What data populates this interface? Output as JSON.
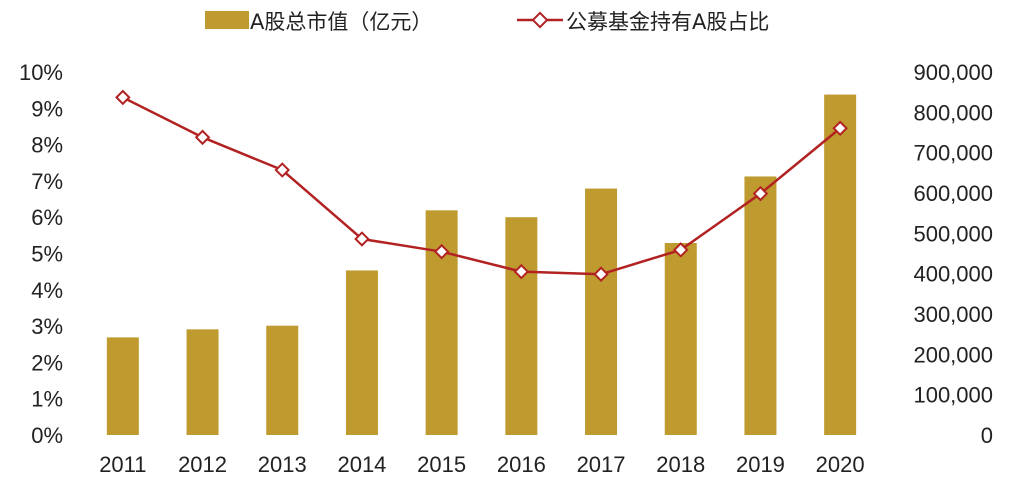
{
  "chart_data": {
    "type": "bar+line",
    "title": "",
    "categories": [
      "2011",
      "2012",
      "2013",
      "2014",
      "2015",
      "2016",
      "2017",
      "2018",
      "2019",
      "2020"
    ],
    "series": [
      {
        "name": "A股总市值（亿元）",
        "type": "bar",
        "axis": "right",
        "color": "#BF9A2F",
        "values": [
          242000,
          262000,
          271000,
          408000,
          557000,
          540000,
          611000,
          476000,
          641000,
          844000
        ]
      },
      {
        "name": "公募基金持有A股占比",
        "type": "line",
        "axis": "left",
        "color": "#B22222",
        "marker": "diamond-hollow",
        "values": [
          9.3,
          8.2,
          7.3,
          5.4,
          5.05,
          4.5,
          4.43,
          5.1,
          6.65,
          8.45
        ]
      }
    ],
    "left_axis": {
      "min": 0,
      "max": 10,
      "step": 1,
      "tick_labels": [
        "0%",
        "1%",
        "2%",
        "3%",
        "4%",
        "5%",
        "6%",
        "7%",
        "8%",
        "9%",
        "10%"
      ]
    },
    "right_axis": {
      "min": 0,
      "max": 900000,
      "step": 100000,
      "tick_labels": [
        "0",
        "100,000",
        "200,000",
        "300,000",
        "400,000",
        "500,000",
        "600,000",
        "700,000",
        "800,000",
        "900,000"
      ]
    },
    "grid": false,
    "legend_position": "top-center"
  }
}
